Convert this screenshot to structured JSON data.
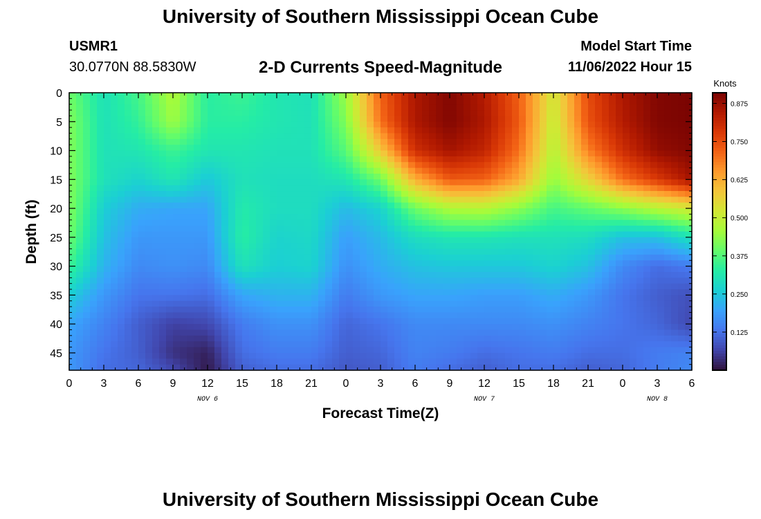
{
  "page": {
    "title_top": "University of Southern Mississippi Ocean Cube",
    "title_bottom": "University of Southern Mississippi Ocean Cube",
    "station_id": "USMR1",
    "station_coords": "30.0770N  88.5830W",
    "subtitle": "2-D Currents Speed-Magnitude",
    "model_start_label": "Model Start Time",
    "model_start_value": "11/06/2022 Hour 15"
  },
  "chart_data": {
    "type": "heatmap",
    "title": "2-D Currents Speed-Magnitude",
    "xlabel": "Forecast Time(Z)",
    "ylabel": "Depth (ft)",
    "x_ticks": [
      "0",
      "3",
      "6",
      "9",
      "12",
      "15",
      "18",
      "21",
      "0",
      "3",
      "6",
      "9",
      "12",
      "15",
      "18",
      "21",
      "0",
      "3",
      "6"
    ],
    "x_range_hours": [
      0,
      54
    ],
    "date_labels": [
      {
        "label": "NOV 6",
        "hour": 12
      },
      {
        "label": "NOV 7",
        "hour": 36
      },
      {
        "label": "NOV 8",
        "hour": 51
      }
    ],
    "y_ticks": [
      0,
      5,
      10,
      15,
      20,
      25,
      30,
      35,
      40,
      45
    ],
    "y_range_ft": [
      0,
      48
    ],
    "y_reversed": true,
    "colorbar": {
      "label": "Knots",
      "range": [
        0,
        0.91
      ],
      "ticks": [
        "0.875",
        "0.750",
        "0.625",
        "0.500",
        "0.375",
        "0.250",
        "0.125"
      ],
      "tick_values": [
        0.875,
        0.75,
        0.625,
        0.5,
        0.375,
        0.25,
        0.125
      ]
    },
    "hours": [
      0,
      3,
      6,
      9,
      12,
      15,
      18,
      21,
      24,
      27,
      30,
      33,
      36,
      39,
      42,
      45,
      48,
      51,
      54
    ],
    "depths": [
      0,
      5,
      10,
      15,
      20,
      25,
      30,
      35,
      40,
      45,
      48
    ],
    "speed_knots": [
      [
        0.4,
        0.3,
        0.36,
        0.47,
        0.33,
        0.35,
        0.31,
        0.3,
        0.45,
        0.72,
        0.85,
        0.9,
        0.84,
        0.72,
        0.52,
        0.75,
        0.85,
        0.9,
        0.91
      ],
      [
        0.42,
        0.3,
        0.34,
        0.45,
        0.33,
        0.33,
        0.31,
        0.3,
        0.42,
        0.7,
        0.85,
        0.9,
        0.85,
        0.73,
        0.5,
        0.74,
        0.84,
        0.9,
        0.91
      ],
      [
        0.42,
        0.3,
        0.31,
        0.35,
        0.31,
        0.31,
        0.3,
        0.3,
        0.38,
        0.58,
        0.8,
        0.86,
        0.82,
        0.7,
        0.48,
        0.68,
        0.8,
        0.88,
        0.9
      ],
      [
        0.42,
        0.3,
        0.27,
        0.31,
        0.25,
        0.3,
        0.29,
        0.29,
        0.31,
        0.4,
        0.62,
        0.73,
        0.72,
        0.63,
        0.44,
        0.56,
        0.7,
        0.78,
        0.86
      ],
      [
        0.42,
        0.26,
        0.21,
        0.2,
        0.2,
        0.32,
        0.29,
        0.29,
        0.23,
        0.27,
        0.4,
        0.47,
        0.48,
        0.43,
        0.36,
        0.39,
        0.43,
        0.48,
        0.52
      ],
      [
        0.4,
        0.24,
        0.18,
        0.18,
        0.18,
        0.33,
        0.27,
        0.28,
        0.19,
        0.23,
        0.29,
        0.31,
        0.31,
        0.3,
        0.3,
        0.29,
        0.24,
        0.24,
        0.3
      ],
      [
        0.35,
        0.22,
        0.16,
        0.17,
        0.16,
        0.3,
        0.26,
        0.27,
        0.17,
        0.21,
        0.24,
        0.25,
        0.25,
        0.25,
        0.27,
        0.24,
        0.16,
        0.12,
        0.14
      ],
      [
        0.26,
        0.18,
        0.13,
        0.13,
        0.12,
        0.2,
        0.22,
        0.22,
        0.14,
        0.18,
        0.2,
        0.2,
        0.19,
        0.19,
        0.21,
        0.18,
        0.13,
        0.1,
        0.08
      ],
      [
        0.2,
        0.15,
        0.1,
        0.06,
        0.07,
        0.14,
        0.17,
        0.17,
        0.11,
        0.13,
        0.16,
        0.16,
        0.16,
        0.16,
        0.17,
        0.15,
        0.13,
        0.11,
        0.07
      ],
      [
        0.18,
        0.13,
        0.1,
        0.04,
        0.02,
        0.12,
        0.14,
        0.14,
        0.1,
        0.11,
        0.15,
        0.14,
        0.12,
        0.13,
        0.14,
        0.12,
        0.12,
        0.14,
        0.15
      ],
      [
        0.18,
        0.12,
        0.11,
        0.07,
        0.01,
        0.1,
        0.12,
        0.12,
        0.09,
        0.1,
        0.14,
        0.12,
        0.1,
        0.12,
        0.12,
        0.1,
        0.11,
        0.14,
        0.16
      ]
    ],
    "colors": {
      "map": [
        "#30123b",
        "#4145ab",
        "#4675ed",
        "#39a2fc",
        "#1bcfd4",
        "#24eca6",
        "#61fc6c",
        "#a4fc3b",
        "#d1e834",
        "#f3c63a",
        "#fe9b2d",
        "#f36315",
        "#d93806",
        "#b11901",
        "#7a0402"
      ]
    }
  }
}
